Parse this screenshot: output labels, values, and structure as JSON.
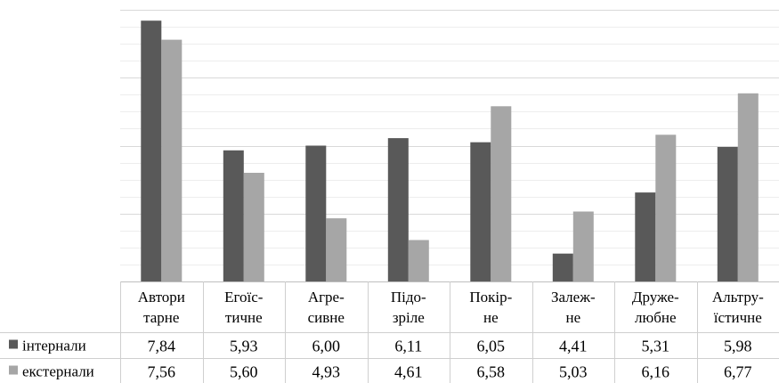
{
  "chart_data": {
    "type": "bar",
    "grid": true,
    "legend_placement": "data-table-left",
    "ylim": [
      4,
      8
    ],
    "categories": [
      [
        "Автори",
        "тарне"
      ],
      [
        "Егоїс-",
        "тичне"
      ],
      [
        "Агре-",
        "сивне"
      ],
      [
        "Підо-",
        "зріле"
      ],
      [
        "Покір-",
        "не"
      ],
      [
        "Залеж-",
        "не"
      ],
      [
        "Друже-",
        "любне"
      ],
      [
        "Альтру-",
        "їстичне"
      ]
    ],
    "series": [
      {
        "name": "інтернали",
        "color": "#595959",
        "values": [
          7.84,
          5.93,
          6.0,
          6.11,
          6.05,
          4.41,
          5.31,
          5.98
        ],
        "labels": [
          "7,84",
          "5,93",
          "6,00",
          "6,11",
          "6,05",
          "4,41",
          "5,31",
          "5,98"
        ]
      },
      {
        "name": "екстернали",
        "color": "#a6a6a6",
        "values": [
          7.56,
          5.6,
          4.93,
          4.61,
          6.58,
          5.03,
          6.16,
          6.77
        ],
        "labels": [
          "7,56",
          "5,60",
          "4,93",
          "4,61",
          "6,58",
          "5,03",
          "6,16",
          "6,77"
        ]
      }
    ]
  }
}
